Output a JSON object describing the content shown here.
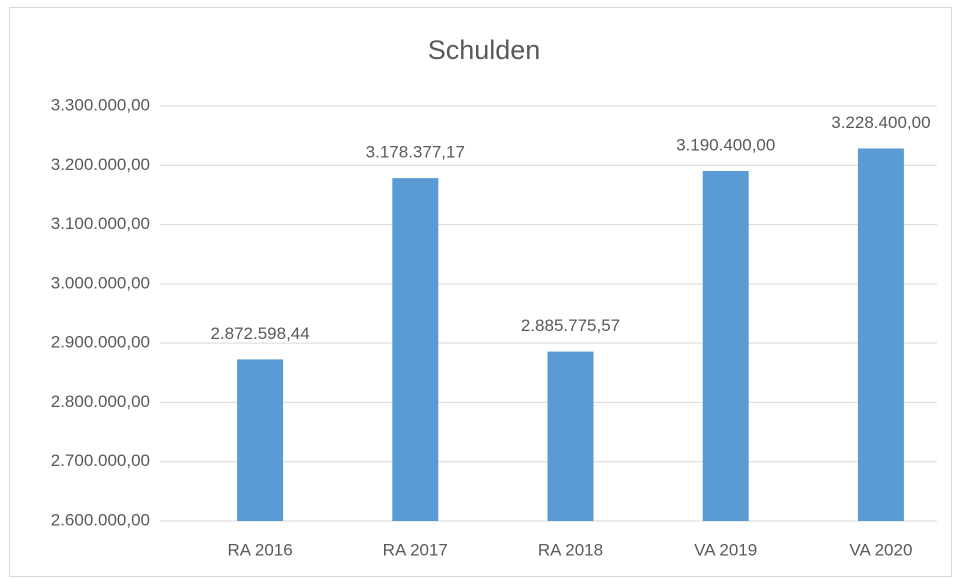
{
  "chart_data": {
    "type": "bar",
    "title": "Schulden",
    "categories": [
      "RA 2016",
      "RA 2017",
      "RA 2018",
      "VA 2019",
      "VA 2020"
    ],
    "values": [
      2872598.44,
      3178377.17,
      2885775.57,
      3190400,
      3228400
    ],
    "value_labels": [
      "2.872.598,44",
      "3.178.377,17",
      "2.885.775,57",
      "3.190.400,00",
      "3.228.400,00"
    ],
    "color": "#5b9bd5",
    "ylim": [
      2600000,
      3300000
    ],
    "yticks": [
      {
        "value": 2600000,
        "label": "2.600.000,00"
      },
      {
        "value": 2700000,
        "label": "2.700.000,00"
      },
      {
        "value": 2800000,
        "label": "2.800.000,00"
      },
      {
        "value": 2900000,
        "label": "2.900.000,00"
      },
      {
        "value": 3000000,
        "label": "3.000.000,00"
      },
      {
        "value": 3100000,
        "label": "3.100.000,00"
      },
      {
        "value": 3200000,
        "label": "3.200.000,00"
      },
      {
        "value": 3300000,
        "label": "3.300.000,00"
      }
    ],
    "grid": true
  }
}
